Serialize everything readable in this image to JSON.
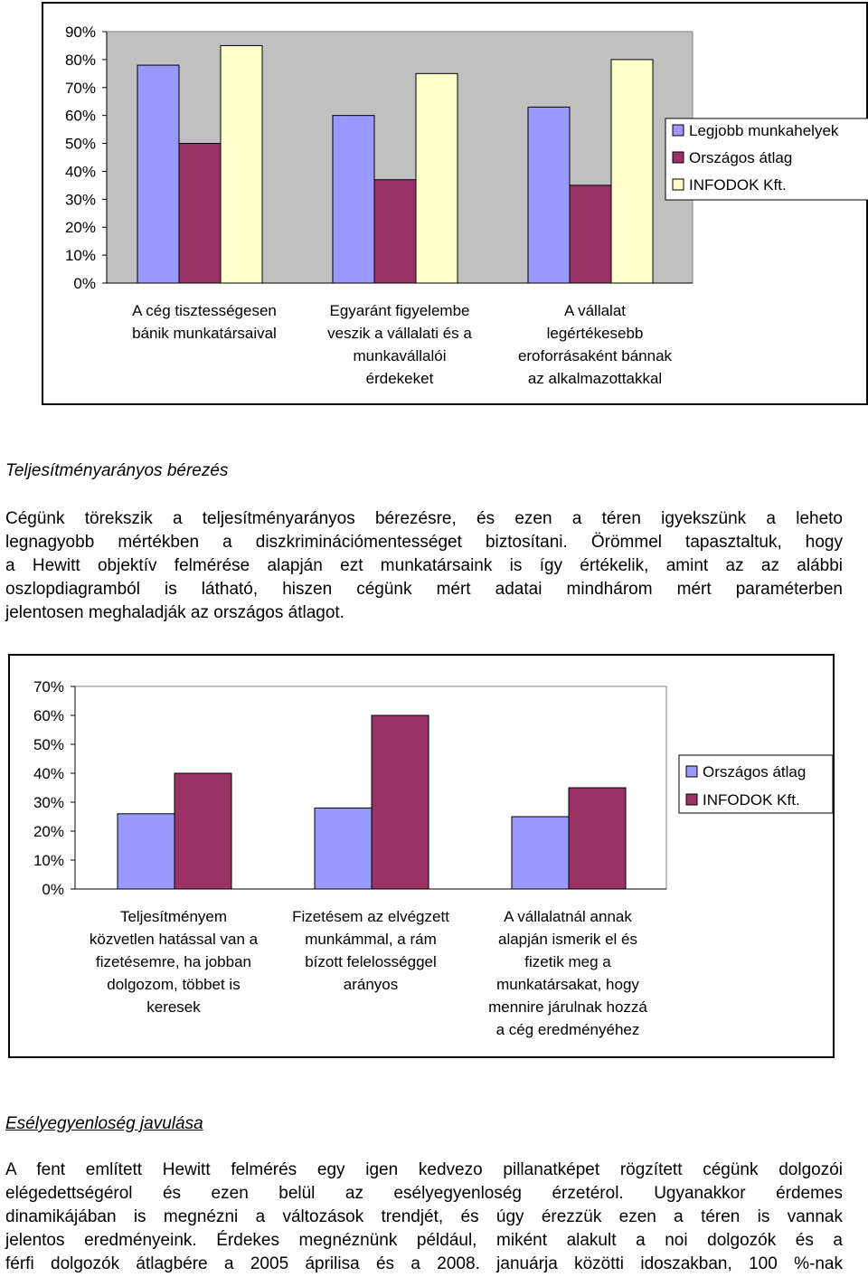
{
  "chart_data": [
    {
      "type": "bar",
      "categories": [
        [
          "A cég tisztességesen",
          "bánik munkatársaival"
        ],
        [
          "Egyaránt figyelembe",
          "veszik a vállalati és a",
          "munkavállalói",
          "érdekeket"
        ],
        [
          "A vállalat",
          "legértékesebb",
          "eroforrásaként bánnak",
          "az alkalmazottakkal"
        ]
      ],
      "series": [
        {
          "name": "Legjobb munkahelyek",
          "values": [
            78,
            60,
            63
          ],
          "color": "#9999ff"
        },
        {
          "name": "Országos átlag",
          "values": [
            50,
            37,
            35
          ],
          "color": "#993366"
        },
        {
          "name": "INFODOK Kft.",
          "values": [
            85,
            75,
            80
          ],
          "color": "#ffffcc"
        }
      ],
      "yticks": [
        "0%",
        "10%",
        "20%",
        "30%",
        "40%",
        "50%",
        "60%",
        "70%",
        "80%",
        "90%"
      ],
      "ylim": [
        0,
        90
      ],
      "grid": false,
      "plot_area_color": "#c0c0c0",
      "legend": "right"
    },
    {
      "type": "bar",
      "categories": [
        [
          "Teljesítményem",
          "közvetlen hatással van a",
          "fizetésemre, ha jobban",
          "dolgozom, többet is",
          "keresek"
        ],
        [
          "Fizetésem az elvégzett",
          "munkámmal, a rám",
          "bízott felelosséggel",
          "arányos"
        ],
        [
          "A vállalatnál annak",
          "alapján ismerik el és",
          "fizetik meg a",
          "munkatársakat, hogy",
          "mennire járulnak hozzá",
          "a cég eredményéhez"
        ]
      ],
      "series": [
        {
          "name": "Országos átlag",
          "values": [
            26,
            28,
            25
          ],
          "color": "#9999ff"
        },
        {
          "name": "INFODOK Kft.",
          "values": [
            40,
            60,
            35
          ],
          "color": "#993366"
        }
      ],
      "yticks": [
        "0%",
        "10%",
        "20%",
        "30%",
        "40%",
        "50%",
        "60%",
        "70%"
      ],
      "ylim": [
        0,
        70
      ],
      "grid": false,
      "plot_area_color": "#ffffff",
      "legend": "right"
    }
  ],
  "section1": {
    "heading": "Teljesítményarányos bérezés",
    "lines": [
      "Cégünk törekszik a teljesítményarányos bérezésre, és ezen a téren  igyekszünk a leheto",
      "legnagyobb mértékben a diszkriminációmentességet biztosítani. Örömmel tapasztaltuk, hogy",
      "a Hewitt objektív felmérése alapján ezt munkatársaink is így értékelik, amint az az alábbi",
      "oszlopdiagramból is látható, hiszen cégünk mért adatai mindhárom mért paraméterben",
      "jelentosen meghaladják az országos átlagot."
    ]
  },
  "section2": {
    "heading": "Esélyegyenloség javulása",
    "lines": [
      "A fent említett Hewitt felmérés egy igen kedvezo pillanatképet rögzített cégünk dolgozói",
      "elégedettségérol és ezen belül az esélyegyenloség érzetérol. Ugyanakkor érdemes",
      "dinamikájában is megnézni a változások trendjét, és úgy érezzük ezen a téren is vannak",
      "jelentos eredményeink. Érdekes megnéznünk például, miként alakult a noi dolgozók és a",
      "férfi dolgozók átlagbére a 2005 áprilisa és a 2008. januárja közötti idoszakban, 100 %-nak"
    ]
  }
}
